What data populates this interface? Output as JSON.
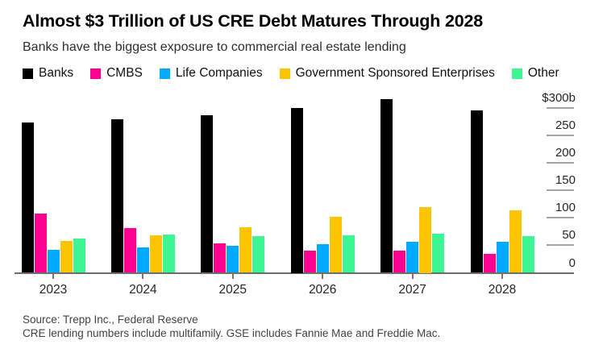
{
  "header": {
    "title": "Almost $3 Trillion of US CRE Debt Matures Through 2028",
    "subtitle": "Banks have the biggest exposure to commercial real estate lending"
  },
  "legend": [
    {
      "label": "Banks",
      "color": "#000000"
    },
    {
      "label": "CMBS",
      "color": "#ff0090"
    },
    {
      "label": "Life Companies",
      "color": "#00aaff"
    },
    {
      "label": "Government Sponsored Enterprises",
      "color": "#ffc400"
    },
    {
      "label": "Other",
      "color": "#3df592"
    }
  ],
  "chart_data": {
    "type": "bar",
    "title": "Almost $3 Trillion of US CRE Debt Matures Through 2028",
    "subtitle": "Banks have the biggest exposure to commercial real estate lending",
    "unit": "$ billions",
    "categories": [
      "2023",
      "2024",
      "2025",
      "2026",
      "2027",
      "2028"
    ],
    "series": [
      {
        "name": "Banks",
        "color": "#000000",
        "values": [
          273,
          279,
          286,
          300,
          316,
          295
        ]
      },
      {
        "name": "CMBS",
        "color": "#ff0090",
        "values": [
          108,
          81,
          53,
          40,
          40,
          34
        ]
      },
      {
        "name": "Life Companies",
        "color": "#00aaff",
        "values": [
          41,
          46,
          49,
          52,
          56,
          56
        ]
      },
      {
        "name": "Government Sponsored Enterprises",
        "color": "#ffc400",
        "values": [
          58,
          68,
          82,
          102,
          120,
          113
        ]
      },
      {
        "name": "Other",
        "color": "#3df592",
        "values": [
          62,
          70,
          66,
          68,
          71,
          66
        ]
      }
    ],
    "y_ticks": [
      {
        "value": 300,
        "label": "$300b"
      },
      {
        "value": 250,
        "label": "250"
      },
      {
        "value": 200,
        "label": "200"
      },
      {
        "value": 150,
        "label": "150"
      },
      {
        "value": 100,
        "label": "100"
      },
      {
        "value": 50,
        "label": "50"
      },
      {
        "value": 0,
        "label": "0"
      }
    ],
    "ylim": [
      0,
      300
    ],
    "xlabel": "",
    "ylabel": "",
    "grid": false,
    "legend_position": "top",
    "y_axis_side": "right"
  },
  "footer": {
    "source": "Source: Trepp Inc., Federal Reserve",
    "note": "CRE lending numbers include multifamily. GSE includes Fannie Mae and Freddie Mac."
  }
}
